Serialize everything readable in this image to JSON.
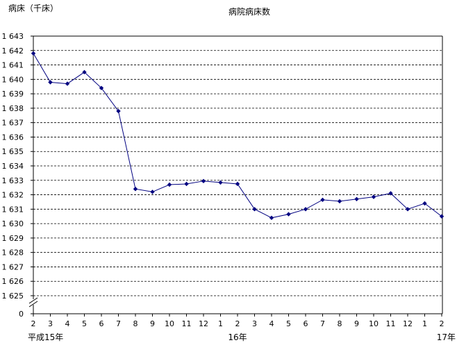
{
  "chart_data": {
    "type": "line",
    "title": "病院病床数",
    "ylabel": "病床（千床）",
    "ylim": [
      1625,
      1643
    ],
    "y_ticks": [
      "1 625",
      "1 626",
      "1 627",
      "1 628",
      "1 629",
      "1 630",
      "1 631",
      "1 632",
      "1 633",
      "1 634",
      "1 635",
      "1 636",
      "1 637",
      "1 638",
      "1 639",
      "1 640",
      "1 641",
      "1 642",
      "1 643"
    ],
    "y_zero_label": "0",
    "y_axis_break": true,
    "grid": "horizontal-dashed",
    "x_categories": [
      "2",
      "3",
      "4",
      "5",
      "6",
      "7",
      "8",
      "9",
      "10",
      "11",
      "12",
      "1",
      "2",
      "3",
      "4",
      "5",
      "6",
      "7",
      "8",
      "9",
      "10",
      "11",
      "12",
      "1",
      "2"
    ],
    "x_year_labels": [
      {
        "label": "平成15年",
        "at_index": 0
      },
      {
        "label": "16年",
        "at_index": 12
      },
      {
        "label": "17年",
        "at_index": 24
      }
    ],
    "series": [
      {
        "color": "#000080",
        "marker": "diamond",
        "values": [
          1641.8,
          1639.8,
          1639.7,
          1640.5,
          1639.4,
          1637.8,
          1632.4,
          1632.2,
          1632.7,
          1632.75,
          1632.95,
          1632.85,
          1632.75,
          1631.0,
          1630.4,
          1630.65,
          1631.0,
          1631.65,
          1631.55,
          1631.7,
          1631.85,
          1632.1,
          1631.0,
          1631.4,
          1630.5
        ]
      }
    ]
  }
}
